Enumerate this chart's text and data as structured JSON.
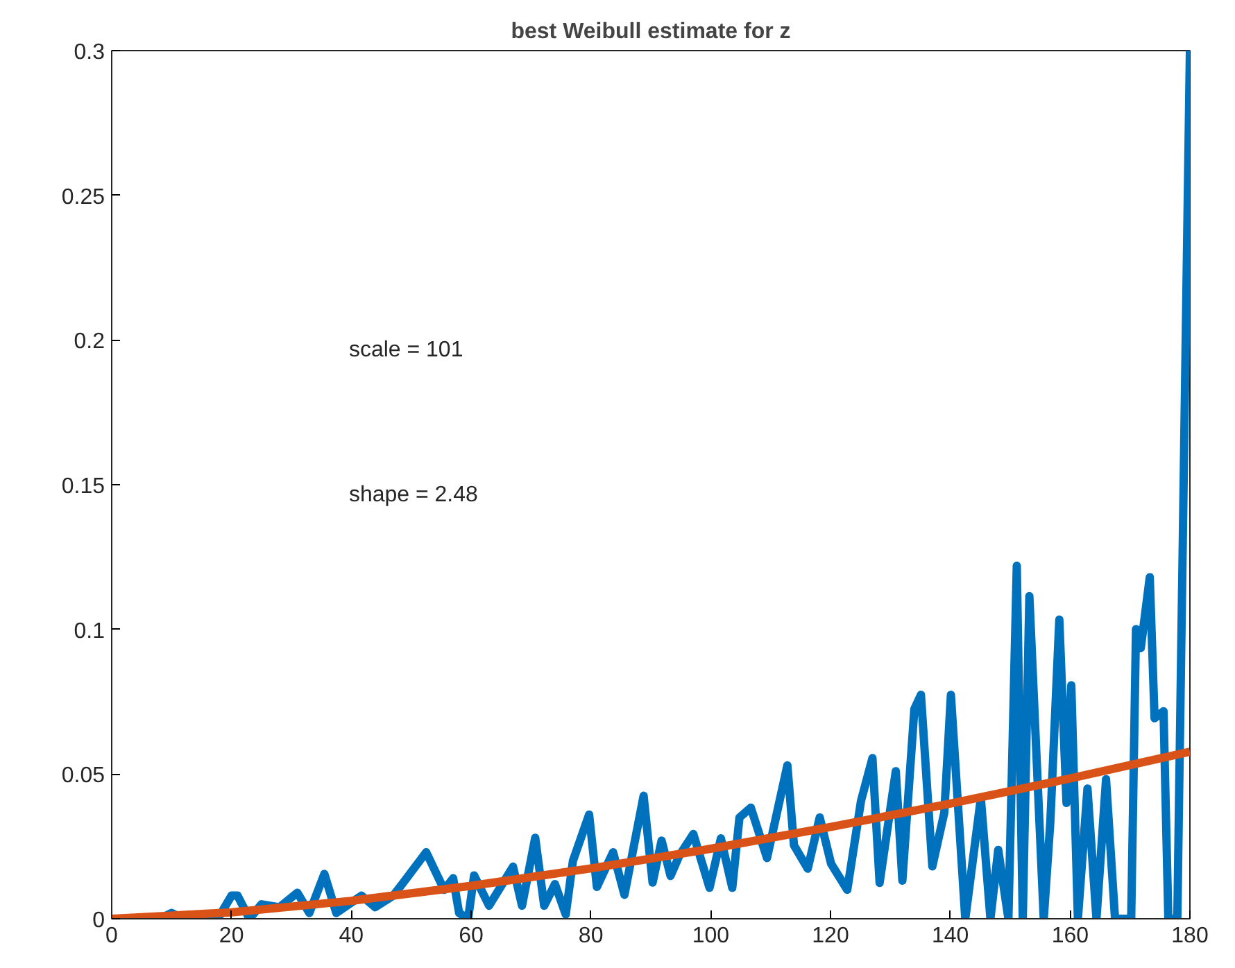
{
  "chart_data": {
    "type": "line",
    "title": "best Weibull estimate for z",
    "xlim": [
      0,
      180
    ],
    "ylim": [
      0,
      0.3
    ],
    "xticks": [
      0,
      20,
      40,
      60,
      80,
      100,
      120,
      140,
      160,
      180
    ],
    "yticks": [
      0,
      0.05,
      0.1,
      0.15,
      0.2,
      0.25,
      0.3
    ],
    "grid": false,
    "marker": "none",
    "line_style": "solid",
    "annotations": [
      "scale = 101",
      "shape = 2.48"
    ],
    "series": [
      {
        "color": "#0072bd",
        "x": [
          0,
          5,
          8,
          10,
          12,
          15,
          18,
          20,
          21,
          23,
          25,
          28,
          31,
          33,
          35.5,
          37.5,
          41.7,
          44,
          47,
          48.5,
          52.5,
          55.5,
          57,
          58,
          59.5,
          60.5,
          63,
          67,
          68.5,
          70.7,
          72.2,
          74,
          75.8,
          77,
          79.7,
          81,
          83.7,
          85.6,
          88.8,
          90.3,
          91.8,
          93.3,
          94.8,
          97.1,
          99.8,
          101.7,
          103.6,
          104.8,
          106.7,
          109.4,
          112.8,
          113.9,
          116.2,
          118.2,
          120.1,
          122.8,
          125.1,
          127,
          128.2,
          130.9,
          132,
          134,
          135.1,
          137,
          139,
          140.1,
          142.5,
          145.1,
          146.7,
          148,
          149.7,
          151.1,
          152.1,
          153.2,
          155.6,
          156.7,
          158.2,
          159.4,
          160.2,
          161.3,
          162.9,
          164.4,
          166,
          167.5,
          170.2,
          171,
          171.8,
          173.3,
          174.1,
          175.6,
          176.4,
          177.9,
          180
        ],
        "values": [
          0,
          0,
          0,
          0.002,
          0,
          0.001,
          0.001,
          0.008,
          0.008,
          0,
          0.005,
          0.004,
          0.009,
          0.002,
          0.0155,
          0.002,
          0.008,
          0.004,
          0.008,
          0.012,
          0.023,
          0.01,
          0.014,
          0.002,
          0,
          0.015,
          0.0045,
          0.018,
          0.0045,
          0.028,
          0.0045,
          0.012,
          0.0015,
          0.02,
          0.036,
          0.011,
          0.023,
          0.0083,
          0.0425,
          0.0125,
          0.027,
          0.0148,
          0.022,
          0.0293,
          0.0107,
          0.0278,
          0.0107,
          0.035,
          0.0384,
          0.021,
          0.053,
          0.0254,
          0.0173,
          0.035,
          0.019,
          0.01,
          0.0408,
          0.0555,
          0.0124,
          0.051,
          0.0132,
          0.0725,
          0.0774,
          0.0181,
          0.0367,
          0.0774,
          0,
          0.0417,
          0,
          0.0238,
          0,
          0.122,
          0,
          0.1115,
          0,
          0.0335,
          0.1034,
          0.04,
          0.0807,
          0,
          0.045,
          0,
          0.0482,
          0,
          0,
          0.1001,
          0.0936,
          0.118,
          0.0693,
          0.0717,
          0,
          0,
          0.3
        ]
      },
      {
        "color": "#d95319",
        "x": [
          0,
          20,
          40,
          60,
          80,
          100,
          120,
          140,
          160,
          180
        ],
        "values": [
          0,
          0.0022,
          0.0062,
          0.0114,
          0.0174,
          0.0242,
          0.0317,
          0.0398,
          0.0485,
          0.0577
        ]
      }
    ]
  }
}
